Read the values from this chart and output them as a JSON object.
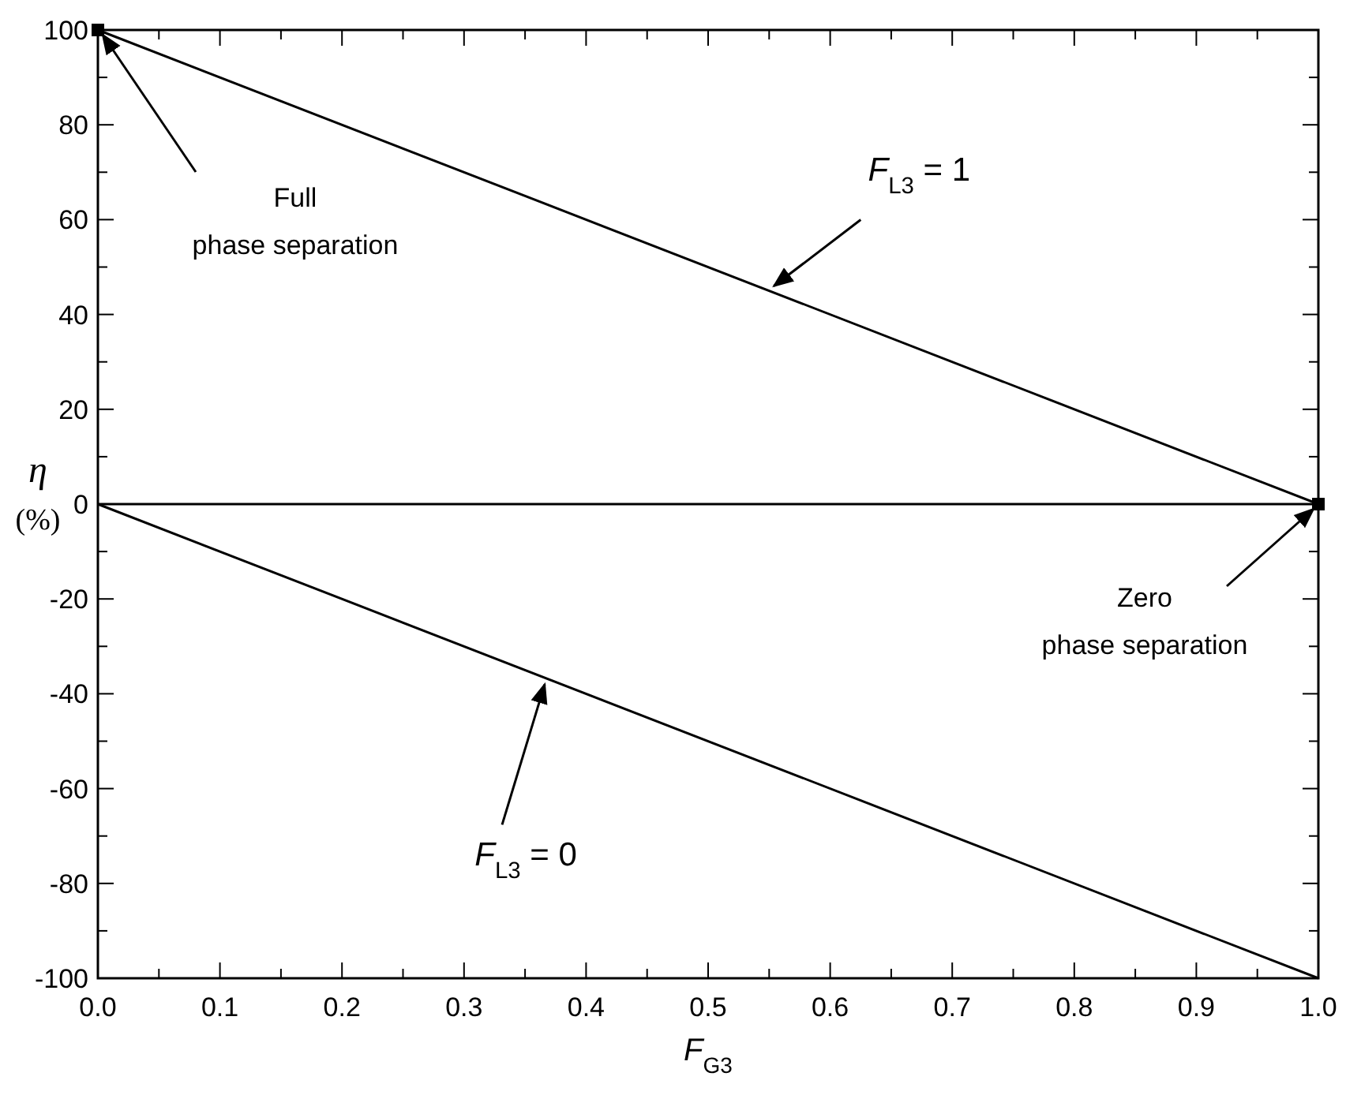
{
  "chart_data": {
    "type": "line",
    "xlabel": "F$_{G3}$",
    "ylabel": "η\n(%)",
    "xlim": [
      0,
      1
    ],
    "ylim": [
      -100,
      100
    ],
    "xticks": [
      {
        "value": 0,
        "label": "0.0"
      },
      {
        "value": 0.05,
        "label": null
      },
      {
        "value": 0.1,
        "label": "0.1"
      },
      {
        "value": 0.15,
        "label": null
      },
      {
        "value": 0.2,
        "label": "0.2"
      },
      {
        "value": 0.25,
        "label": null
      },
      {
        "value": 0.3,
        "label": "0.3"
      },
      {
        "value": 0.35,
        "label": null
      },
      {
        "value": 0.4,
        "label": "0.4"
      },
      {
        "value": 0.45,
        "label": null
      },
      {
        "value": 0.5,
        "label": "0.5"
      },
      {
        "value": 0.55,
        "label": null
      },
      {
        "value": 0.6,
        "label": "0.6"
      },
      {
        "value": 0.65,
        "label": null
      },
      {
        "value": 0.7,
        "label": "0.7"
      },
      {
        "value": 0.75,
        "label": null
      },
      {
        "value": 0.8,
        "label": "0.8"
      },
      {
        "value": 0.85,
        "label": null
      },
      {
        "value": 0.9,
        "label": "0.9"
      },
      {
        "value": 0.95,
        "label": null
      },
      {
        "value": 1,
        "label": "1.0"
      }
    ],
    "yticks": [
      -100,
      {
        "value": -90,
        "label": null
      },
      -80,
      {
        "value": -70,
        "label": null
      },
      -60,
      {
        "value": -50,
        "label": null
      },
      -40,
      {
        "value": -30,
        "label": null
      },
      -20,
      {
        "value": -10,
        "label": null
      },
      0,
      {
        "value": 10,
        "label": null
      },
      20,
      {
        "value": 30,
        "label": null
      },
      40,
      {
        "value": 50,
        "label": null
      },
      60,
      {
        "value": 70,
        "label": null
      },
      80,
      {
        "value": 90,
        "label": null
      },
      100
    ],
    "grid": false,
    "x": [
      0,
      1
    ],
    "series": [
      {
        "color": "#000000",
        "values": [
          100,
          0
        ],
        "marker": "none"
      },
      {
        "color": "#000000",
        "values": [
          0,
          -100
        ],
        "marker": "none"
      },
      {
        "type": "scatter",
        "color": "#000000",
        "values": [
          100,
          0
        ],
        "marker": "square"
      }
    ],
    "ref_lines": [
      {
        "axis": "y",
        "value": 0,
        "color": "#000000"
      }
    ],
    "annotations": [
      {
        "text": "Full\nphase separation",
        "x": 0,
        "y": 100
      },
      {
        "text": "F$_{L3}$ = 1",
        "x": 0.55,
        "y": 45
      },
      {
        "text": "Zero\nphase separation",
        "x": 1,
        "y": 0
      },
      {
        "text": "F$_{L3}$ = 0",
        "x": 0.37,
        "y": -37
      }
    ]
  }
}
